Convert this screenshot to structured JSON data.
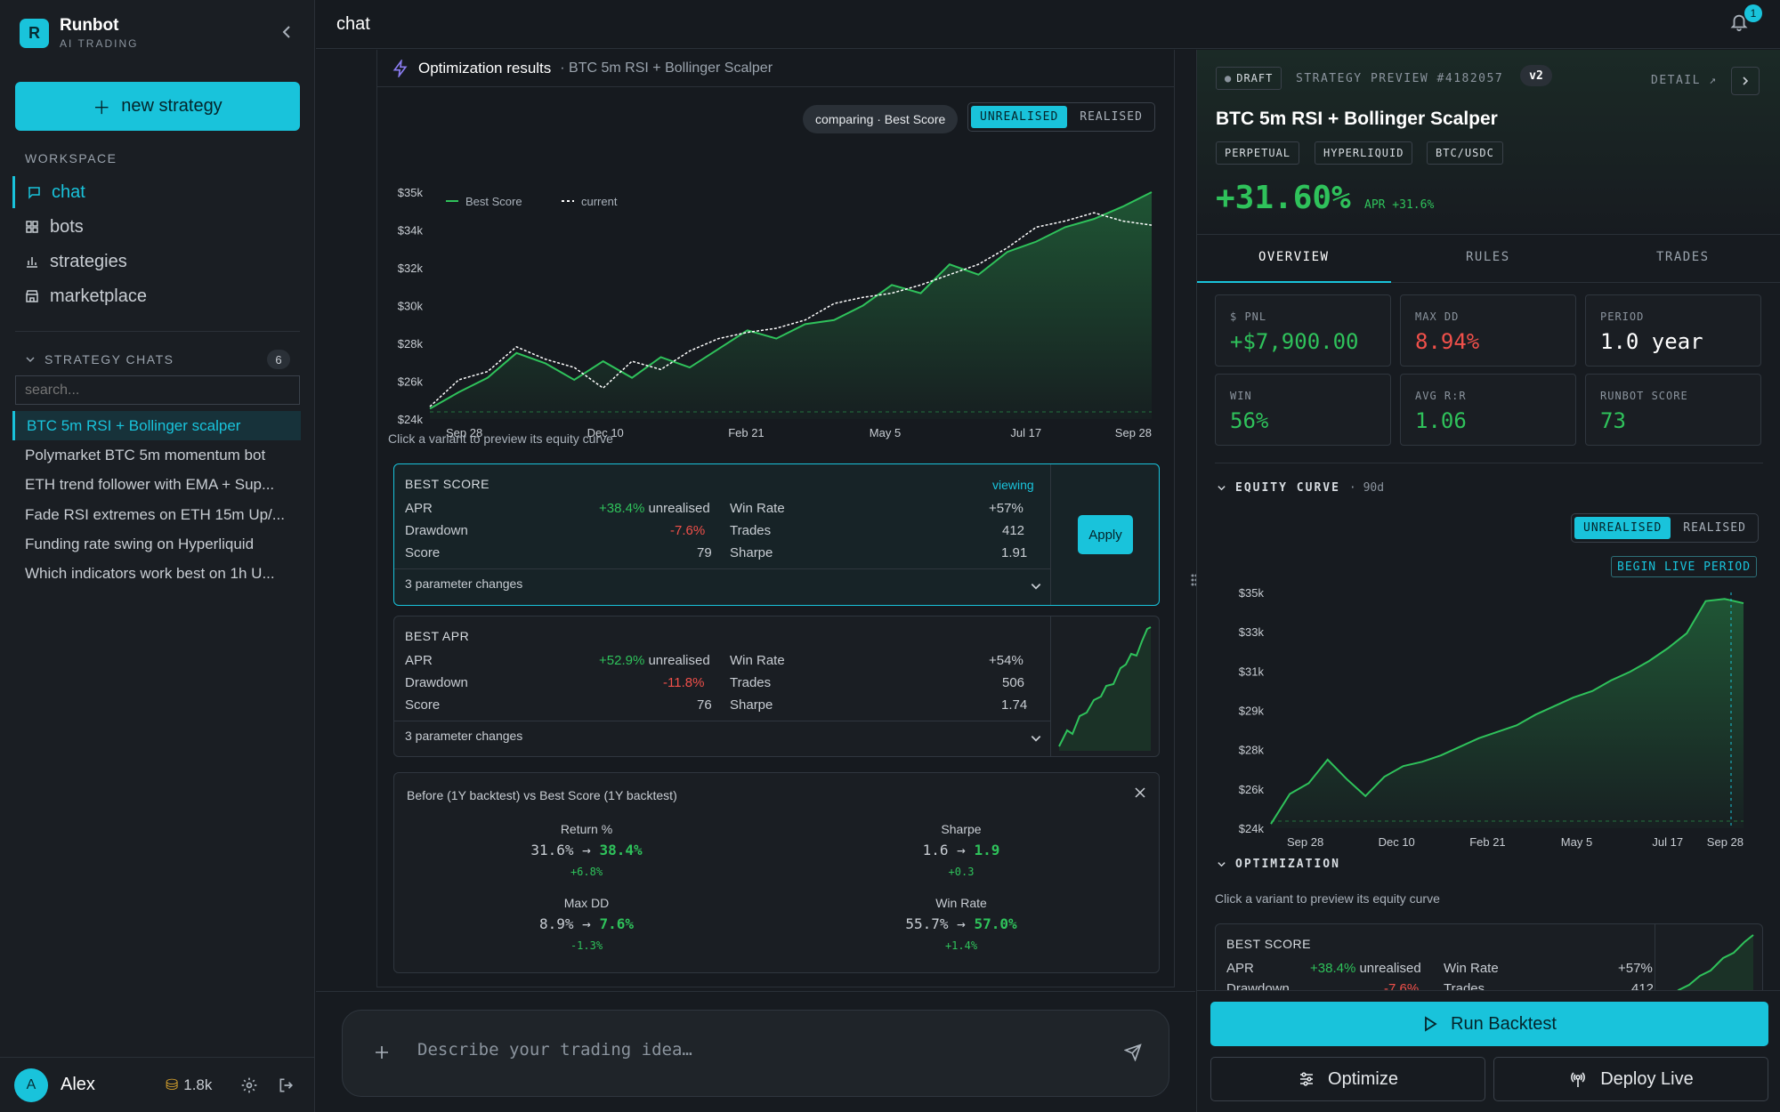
{
  "app": {
    "name": "Runbot",
    "subtitle": "AI TRADING",
    "logo_letter": "R"
  },
  "sidebar": {
    "new_strategy": "new strategy",
    "workspace_label": "WORKSPACE",
    "nav": [
      {
        "label": "chat",
        "icon": "chat-icon",
        "active": true
      },
      {
        "label": "bots",
        "icon": "grid-icon"
      },
      {
        "label": "strategies",
        "icon": "bar-chart-icon"
      },
      {
        "label": "marketplace",
        "icon": "store-icon"
      }
    ],
    "strategy_chats_label": "STRATEGY CHATS",
    "strategy_chats_count": "6",
    "search_placeholder": "search...",
    "chats": [
      "BTC 5m RSI + Bollinger scalper",
      "Polymarket BTC 5m momentum bot",
      "ETH trend follower with EMA + Sup...",
      "Fade RSI extremes on ETH 15m Up/...",
      "Funding rate swing on Hyperliquid",
      "Which indicators work best on 1h U..."
    ],
    "user": {
      "initial": "A",
      "name": "Alex",
      "credits": "1.8k"
    }
  },
  "header": {
    "title": "chat",
    "notifications": "1"
  },
  "optimization": {
    "title": "Optimization results",
    "subtitle": "· BTC 5m RSI + Bollinger Scalper",
    "comparing": "comparing · Best Score",
    "toggle": [
      "UNREALISED",
      "REALISED"
    ],
    "hint": "Click a variant to preview its equity curve",
    "variants": [
      {
        "title": "BEST SCORE",
        "status": "viewing",
        "apr_label": "APR",
        "apr": "+38.4%",
        "apr_note": "unrealised",
        "dd_label": "Drawdown",
        "dd": "-7.6%",
        "score_label": "Score",
        "score": "79",
        "win_label": "Win Rate",
        "win": "+57%",
        "trades_label": "Trades",
        "trades": "412",
        "sharpe_label": "Sharpe",
        "sharpe": "1.91",
        "changes": "3 parameter changes",
        "apply": "Apply"
      },
      {
        "title": "BEST APR",
        "apr_label": "APR",
        "apr": "+52.9%",
        "apr_note": "unrealised",
        "dd_label": "Drawdown",
        "dd": "-11.8%",
        "score_label": "Score",
        "score": "76",
        "win_label": "Win Rate",
        "win": "+54%",
        "trades_label": "Trades",
        "trades": "506",
        "sharpe_label": "Sharpe",
        "sharpe": "1.74",
        "changes": "3 parameter changes"
      }
    ],
    "compare": {
      "title": "Before (1Y backtest) vs Best Score (1Y backtest)",
      "metrics": [
        {
          "label": "Return %",
          "before": "31.6%",
          "after": "38.4%",
          "delta": "+6.8%"
        },
        {
          "label": "Sharpe",
          "before": "1.6",
          "after": "1.9",
          "delta": "+0.3"
        },
        {
          "label": "Max DD",
          "before": "8.9%",
          "after": "7.6%",
          "delta": "-1.3%"
        },
        {
          "label": "Win Rate",
          "before": "55.7%",
          "after": "57.0%",
          "delta": "+1.4%"
        }
      ]
    }
  },
  "input": {
    "placeholder": "Describe your trading idea…"
  },
  "preview": {
    "draft": "DRAFT",
    "label": "STRATEGY PREVIEW #4182057",
    "version": "v2",
    "detail": "DETAIL ↗",
    "name": "BTC 5m RSI + Bollinger Scalper",
    "tags": [
      "PERPETUAL",
      "HYPERLIQUID",
      "BTC/USDC"
    ],
    "return": "+31.60%",
    "apr": "APR +31.6%",
    "tabs": [
      "OVERVIEW",
      "RULES",
      "TRADES"
    ],
    "stats": [
      {
        "label": "$ PNL",
        "value": "+$7,900.00",
        "color": "#2fc25b"
      },
      {
        "label": "MAX DD",
        "value": "8.94%",
        "color": "#f0504a"
      },
      {
        "label": "PERIOD",
        "value": "1.0 year",
        "color": "#ffffff"
      },
      {
        "label": "WIN",
        "value": "56%",
        "color": "#2fc25b"
      },
      {
        "label": "AVG R:R",
        "value": "1.06",
        "color": "#2fc25b"
      },
      {
        "label": "RUNBOT SCORE",
        "value": "73",
        "color": "#2fc25b"
      }
    ],
    "equity_label": "EQUITY CURVE",
    "equity_period": "· 90d",
    "toggle": [
      "UNREALISED",
      "REALISED"
    ],
    "live_period": "BEGIN LIVE PERIOD",
    "optimization_label": "OPTIMIZATION",
    "opt_hint": "Click a variant to preview its equity curve",
    "opt_variant": {
      "title": "BEST SCORE",
      "apr_label": "APR",
      "apr": "+38.4%",
      "apr_note": "unrealised",
      "win_label": "Win Rate",
      "win": "+57%",
      "dd_label": "Drawdown",
      "dd": "-7.6%",
      "trades_label": "Trades",
      "trades": "412"
    },
    "actions": {
      "run": "Run Backtest",
      "optimize": "Optimize",
      "deploy": "Deploy Live"
    }
  },
  "chart_data": [
    {
      "type": "line",
      "x_ticks": [
        "Sep 28",
        "Dec 10",
        "Feb 21",
        "May 5",
        "Jul 17",
        "Sep 28"
      ],
      "y_ticks": [
        "$24k",
        "$26k",
        "$28k",
        "$30k",
        "$32k",
        "$34k",
        "$35k"
      ],
      "ylim": [
        24000,
        35000
      ],
      "series": [
        {
          "name": "Best Score",
          "color": "#2fc25b",
          "values": [
            24500,
            25300,
            26000,
            27200,
            26700,
            25900,
            26800,
            26000,
            27000,
            26500,
            27400,
            28300,
            27900,
            28600,
            28800,
            29500,
            30500,
            30100,
            31500,
            31000,
            32100,
            32600,
            33300,
            33700,
            34300,
            35000
          ]
        },
        {
          "name": "current",
          "color": "#ffffff",
          "values": [
            24600,
            25900,
            26300,
            27500,
            26900,
            26500,
            25500,
            26800,
            26400,
            27300,
            27900,
            28200,
            28400,
            28800,
            29600,
            29900,
            30100,
            30500,
            31000,
            31500,
            32300,
            33300,
            33600,
            34000,
            33600,
            33400
          ]
        }
      ]
    },
    {
      "type": "line",
      "x_ticks": [
        "Sep 28",
        "Dec 10",
        "Feb 21",
        "May 5",
        "Jul 17",
        "Sep 28"
      ],
      "y_ticks": [
        "$24k",
        "$26k",
        "$28k",
        "$29k",
        "$31k",
        "$33k",
        "$35k"
      ],
      "ylim": [
        24000,
        35000
      ],
      "series": [
        {
          "name": "",
          "color": "#2fc25b",
          "values": [
            24200,
            25600,
            26100,
            27200,
            26300,
            25500,
            26400,
            26900,
            27100,
            27400,
            27800,
            28200,
            28500,
            28800,
            29300,
            29700,
            30100,
            30400,
            30900,
            31300,
            31800,
            32400,
            33100,
            34600,
            34700,
            34500
          ]
        }
      ]
    }
  ]
}
